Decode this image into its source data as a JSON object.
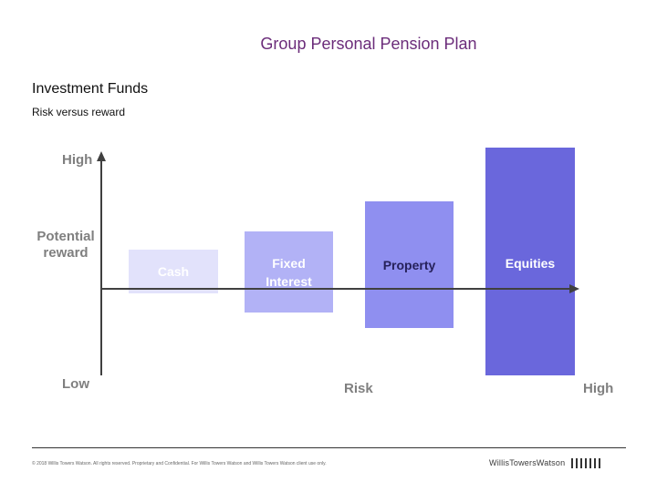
{
  "header": {
    "title": "Group Personal Pension Plan",
    "section_title": "Investment Funds",
    "subtitle": "Risk versus reward"
  },
  "diagram": {
    "y_axis": {
      "top_label": "High",
      "middle_label_line1": "Potential",
      "middle_label_line2": "reward",
      "bottom_label": "Low"
    },
    "x_axis": {
      "label": "Risk",
      "end_label": "High"
    },
    "funds": [
      {
        "line1": "Cash",
        "line2": "",
        "color": "#e2e2fb"
      },
      {
        "line1": "Fixed",
        "line2": "Interest",
        "color": "#b2b2f6"
      },
      {
        "line1": "Property",
        "line2": "",
        "color": "#8f8ff0"
      },
      {
        "line1": "Equities",
        "line2": "",
        "color": "#6a67dc"
      }
    ],
    "axis_color": "#404040",
    "label_color": "#7f7f7f"
  },
  "footer": {
    "copyright": "© 2018 Willis Towers Watson. All rights reserved. Proprietary and Confidential. For Willis Towers Watson and Willis Towers Watson client use only.",
    "logo_text": "WillisTowersWatson",
    "logo_mark": "WTW mark"
  },
  "colors": {
    "title": "#6b2c7a"
  }
}
